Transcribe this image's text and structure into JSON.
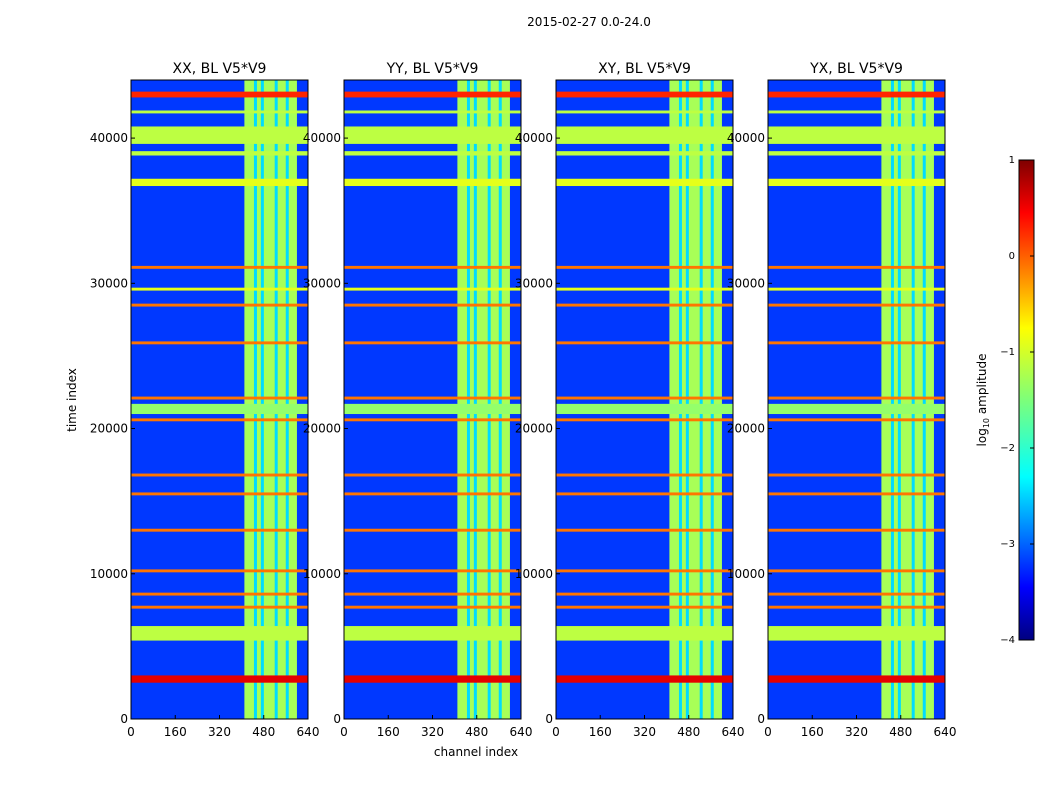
{
  "chart_data": {
    "type": "heatmap",
    "suptitle": "2015-02-27 0.0-24.0",
    "xlabel": "channel index",
    "ylabel": "time index",
    "xlim": [
      0,
      640
    ],
    "ylim": [
      0,
      44000
    ],
    "xticks": [
      0,
      160,
      320,
      480,
      640
    ],
    "yticks": [
      0,
      10000,
      20000,
      30000,
      40000
    ],
    "panels": [
      {
        "title": "XX, BL V5*V9",
        "strong_channel_band": [
          410,
          600
        ]
      },
      {
        "title": "YY, BL V5*V9",
        "strong_channel_band": [
          410,
          600
        ]
      },
      {
        "title": "XY, BL V5*V9",
        "strong_channel_band": [
          410,
          600
        ]
      },
      {
        "title": "YX, BL V5*V9",
        "strong_channel_band": [
          410,
          600
        ]
      }
    ],
    "vertical_dark_channels": [
      450,
      475,
      525,
      565
    ],
    "horizontal_flag_rows": [
      {
        "start": 2500,
        "end": 3000,
        "level": 0.5
      },
      {
        "start": 5400,
        "end": 6400,
        "level": -1.2
      },
      {
        "start": 7600,
        "end": 7800,
        "level": -0.2
      },
      {
        "start": 8500,
        "end": 8700,
        "level": -0.2
      },
      {
        "start": 10100,
        "end": 10300,
        "level": -0.2
      },
      {
        "start": 12900,
        "end": 13100,
        "level": -0.2
      },
      {
        "start": 15400,
        "end": 15600,
        "level": -0.2
      },
      {
        "start": 16700,
        "end": 16900,
        "level": -0.2
      },
      {
        "start": 20500,
        "end": 20700,
        "level": -0.2
      },
      {
        "start": 21000,
        "end": 21700,
        "level": -1.4
      },
      {
        "start": 22000,
        "end": 22200,
        "level": -0.2
      },
      {
        "start": 25800,
        "end": 26000,
        "level": -0.2
      },
      {
        "start": 28400,
        "end": 28600,
        "level": -0.2
      },
      {
        "start": 29500,
        "end": 29700,
        "level": -1.0
      },
      {
        "start": 31000,
        "end": 31200,
        "level": -0.2
      },
      {
        "start": 36700,
        "end": 37200,
        "level": -1.0
      },
      {
        "start": 38800,
        "end": 39100,
        "level": -1.2
      },
      {
        "start": 39600,
        "end": 40800,
        "level": -1.2
      },
      {
        "start": 41700,
        "end": 41900,
        "level": -1.2
      },
      {
        "start": 42800,
        "end": 43200,
        "level": 0.2
      }
    ],
    "colorbar": {
      "label": "log",
      "label_sub": "10",
      "label_rest": " amplitude",
      "min": -4,
      "max": 1,
      "ticks": [
        1,
        0,
        -1,
        -2,
        -3,
        -4
      ],
      "tick_labels": [
        "1",
        "0",
        "−1",
        "−2",
        "−3",
        "−4"
      ],
      "colormap": "jet"
    }
  }
}
